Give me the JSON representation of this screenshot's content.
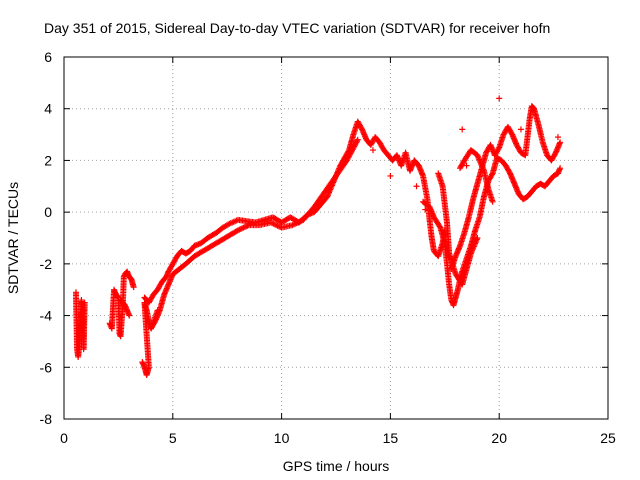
{
  "chart_data": {
    "type": "scatter",
    "title": "Day 351 of 2015, Sidereal Day-to-day VTEC variation (SDTVAR) for receiver hofn",
    "xlabel": "GPS time / hours",
    "ylabel": "SDTVAR / TECUs",
    "xlim": [
      0,
      25
    ],
    "ylim": [
      -8,
      6
    ],
    "xticks": [
      0,
      5,
      10,
      15,
      20,
      25
    ],
    "yticks": [
      -8,
      -6,
      -4,
      -2,
      0,
      2,
      4,
      6
    ],
    "grid": true,
    "marker": "+",
    "colors": {
      "series": "#ff0000",
      "grid": "#a0a0a0",
      "axis": "#000000"
    },
    "series": [
      {
        "name": "SDTVAR",
        "segments": [
          [
            [
              0.55,
              -3.1
            ],
            [
              0.6,
              -5.3
            ],
            [
              0.65,
              -5.6
            ],
            [
              0.7,
              -5.2
            ],
            [
              0.8,
              -3.4
            ],
            [
              0.85,
              -4.5
            ],
            [
              0.9,
              -3.8
            ],
            [
              0.9,
              -5.3
            ],
            [
              0.95,
              -3.5
            ]
          ],
          [
            [
              2.1,
              -4.3
            ],
            [
              2.2,
              -4.5
            ],
            [
              2.3,
              -3.0
            ],
            [
              2.4,
              -3.2
            ],
            [
              2.5,
              -3.3
            ],
            [
              2.55,
              -4.7
            ],
            [
              2.6,
              -4.8
            ],
            [
              2.7,
              -3.6
            ],
            [
              2.75,
              -2.5
            ],
            [
              2.8,
              -2.4
            ],
            [
              2.9,
              -2.3
            ],
            [
              3.0,
              -2.5
            ],
            [
              3.1,
              -2.6
            ],
            [
              3.2,
              -2.9
            ]
          ],
          [
            [
              2.6,
              -3.4
            ],
            [
              2.7,
              -3.5
            ],
            [
              2.8,
              -3.6
            ],
            [
              2.9,
              -3.8
            ],
            [
              3.0,
              -4.0
            ]
          ],
          [
            [
              3.6,
              -5.8
            ],
            [
              3.7,
              -6.0
            ],
            [
              3.8,
              -6.3
            ],
            [
              3.9,
              -6.0
            ],
            [
              3.7,
              -3.5
            ],
            [
              3.8,
              -3.8
            ],
            [
              3.9,
              -4.2
            ],
            [
              4.0,
              -4.5
            ],
            [
              4.1,
              -4.3
            ],
            [
              4.3,
              -3.8
            ]
          ],
          [
            [
              3.7,
              -3.3
            ],
            [
              3.9,
              -3.5
            ],
            [
              4.1,
              -3.2
            ],
            [
              4.3,
              -3.0
            ],
            [
              4.5,
              -2.7
            ],
            [
              4.7,
              -2.5
            ],
            [
              4.8,
              -2.3
            ],
            [
              5.0,
              -2.0
            ],
            [
              5.2,
              -1.7
            ],
            [
              5.4,
              -1.5
            ],
            [
              5.6,
              -1.6
            ],
            [
              5.8,
              -1.5
            ],
            [
              6.0,
              -1.3
            ],
            [
              6.3,
              -1.2
            ],
            [
              6.6,
              -1.0
            ],
            [
              7.0,
              -0.8
            ],
            [
              7.3,
              -0.6
            ],
            [
              7.6,
              -0.45
            ],
            [
              8.0,
              -0.3
            ],
            [
              8.4,
              -0.35
            ],
            [
              8.8,
              -0.4
            ],
            [
              9.2,
              -0.3
            ],
            [
              9.6,
              -0.2
            ],
            [
              10.0,
              -0.4
            ],
            [
              10.4,
              -0.2
            ],
            [
              10.8,
              -0.4
            ],
            [
              11.2,
              -0.1
            ],
            [
              11.5,
              0.0
            ],
            [
              11.8,
              0.3
            ],
            [
              12.1,
              0.6
            ],
            [
              12.4,
              1.2
            ],
            [
              12.7,
              1.8
            ],
            [
              12.9,
              2.1
            ],
            [
              13.1,
              2.4
            ],
            [
              13.3,
              3.0
            ],
            [
              13.5,
              3.5
            ],
            [
              13.7,
              3.2
            ],
            [
              13.9,
              2.8
            ],
            [
              14.1,
              2.6
            ],
            [
              14.3,
              2.9
            ],
            [
              14.5,
              2.7
            ],
            [
              14.7,
              2.4
            ],
            [
              14.9,
              2.2
            ],
            [
              15.1,
              2.0
            ],
            [
              15.3,
              2.2
            ],
            [
              15.5,
              1.8
            ],
            [
              15.7,
              2.3
            ],
            [
              15.9,
              1.6
            ],
            [
              16.1,
              2.0
            ],
            [
              16.3,
              1.8
            ],
            [
              16.5,
              1.4
            ],
            [
              16.7,
              0.5
            ],
            [
              16.8,
              -0.3
            ],
            [
              16.9,
              -1.0
            ],
            [
              17.0,
              -1.5
            ],
            [
              17.2,
              -1.7
            ],
            [
              17.4,
              -1.2
            ],
            [
              17.5,
              -0.7
            ]
          ],
          [
            [
              4.0,
              -4.5
            ],
            [
              4.2,
              -4.2
            ],
            [
              4.4,
              -3.8
            ],
            [
              4.6,
              -3.2
            ],
            [
              4.8,
              -2.8
            ],
            [
              5.0,
              -2.4
            ],
            [
              5.3,
              -2.2
            ],
            [
              5.6,
              -2.0
            ],
            [
              6.0,
              -1.7
            ],
            [
              6.4,
              -1.5
            ],
            [
              6.8,
              -1.3
            ],
            [
              7.2,
              -1.1
            ],
            [
              7.6,
              -0.9
            ],
            [
              8.0,
              -0.7
            ],
            [
              8.5,
              -0.5
            ],
            [
              9.0,
              -0.5
            ],
            [
              9.5,
              -0.4
            ],
            [
              10.0,
              -0.6
            ],
            [
              10.5,
              -0.5
            ],
            [
              11.0,
              -0.3
            ],
            [
              11.5,
              0.2
            ],
            [
              12.0,
              0.8
            ],
            [
              12.5,
              1.4
            ],
            [
              13.0,
              2.0
            ],
            [
              13.5,
              2.8
            ]
          ],
          [
            [
              16.5,
              0.4
            ],
            [
              16.8,
              0.2
            ],
            [
              17.0,
              -0.2
            ],
            [
              17.3,
              -0.6
            ],
            [
              17.5,
              -1.2
            ],
            [
              17.6,
              -2.0
            ],
            [
              17.7,
              -2.8
            ],
            [
              17.8,
              -3.4
            ],
            [
              17.9,
              -3.6
            ],
            [
              18.0,
              -3.3
            ],
            [
              18.1,
              -3.0
            ],
            [
              18.2,
              -2.6
            ],
            [
              18.3,
              -2.3
            ],
            [
              18.5,
              -1.8
            ],
            [
              18.7,
              -1.3
            ],
            [
              18.9,
              -0.7
            ],
            [
              19.1,
              -0.2
            ],
            [
              19.3,
              0.6
            ],
            [
              19.5,
              1.2
            ],
            [
              19.7,
              1.5
            ],
            [
              19.9,
              2.1
            ],
            [
              20.1,
              2.0
            ],
            [
              20.3,
              1.8
            ],
            [
              20.5,
              1.5
            ],
            [
              20.7,
              1.1
            ],
            [
              20.9,
              0.7
            ],
            [
              21.1,
              0.5
            ],
            [
              21.3,
              0.6
            ],
            [
              21.5,
              0.8
            ],
            [
              21.7,
              1.0
            ],
            [
              21.9,
              1.1
            ],
            [
              22.1,
              1.0
            ],
            [
              22.3,
              1.2
            ],
            [
              22.5,
              1.4
            ],
            [
              22.7,
              1.5
            ],
            [
              22.8,
              1.7
            ]
          ],
          [
            [
              17.8,
              -2.2
            ],
            [
              18.0,
              -1.7
            ],
            [
              18.2,
              -1.3
            ],
            [
              18.4,
              -0.8
            ],
            [
              18.6,
              -0.2
            ],
            [
              18.8,
              0.5
            ],
            [
              19.0,
              1.1
            ],
            [
              19.2,
              1.7
            ],
            [
              19.4,
              2.3
            ],
            [
              19.6,
              2.6
            ],
            [
              19.8,
              2.2
            ],
            [
              20.0,
              2.5
            ],
            [
              20.2,
              3.0
            ],
            [
              20.4,
              3.3
            ],
            [
              20.6,
              3.0
            ],
            [
              20.8,
              2.6
            ],
            [
              21.0,
              2.3
            ],
            [
              21.2,
              2.2
            ],
            [
              21.4,
              3.6
            ],
            [
              21.5,
              4.1
            ],
            [
              21.6,
              4.0
            ],
            [
              21.8,
              3.4
            ],
            [
              22.0,
              2.7
            ],
            [
              22.2,
              2.2
            ],
            [
              22.4,
              2.0
            ],
            [
              22.6,
              2.3
            ],
            [
              22.8,
              2.7
            ]
          ],
          [
            [
              17.2,
              1.5
            ],
            [
              17.4,
              1.0
            ],
            [
              17.6,
              -0.4
            ],
            [
              17.7,
              -1.6
            ],
            [
              18.0,
              -2.4
            ],
            [
              18.3,
              -2.8
            ],
            [
              18.5,
              -2.2
            ],
            [
              18.7,
              -1.6
            ],
            [
              19.0,
              -1.0
            ]
          ],
          [
            [
              18.2,
              1.7
            ],
            [
              18.4,
              2.0
            ],
            [
              18.7,
              2.4
            ],
            [
              19.0,
              2.2
            ],
            [
              19.3,
              1.6
            ],
            [
              19.5,
              0.9
            ],
            [
              19.7,
              0.4
            ]
          ]
        ],
        "points": [
          [
            18.3,
            3.2
          ],
          [
            18.5,
            1.8
          ],
          [
            20.0,
            4.4
          ],
          [
            21.0,
            3.2
          ],
          [
            22.7,
            2.9
          ],
          [
            14.2,
            2.4
          ],
          [
            16.2,
            1.0
          ],
          [
            16.6,
            0.1
          ],
          [
            15.0,
            1.4
          ]
        ]
      }
    ]
  }
}
